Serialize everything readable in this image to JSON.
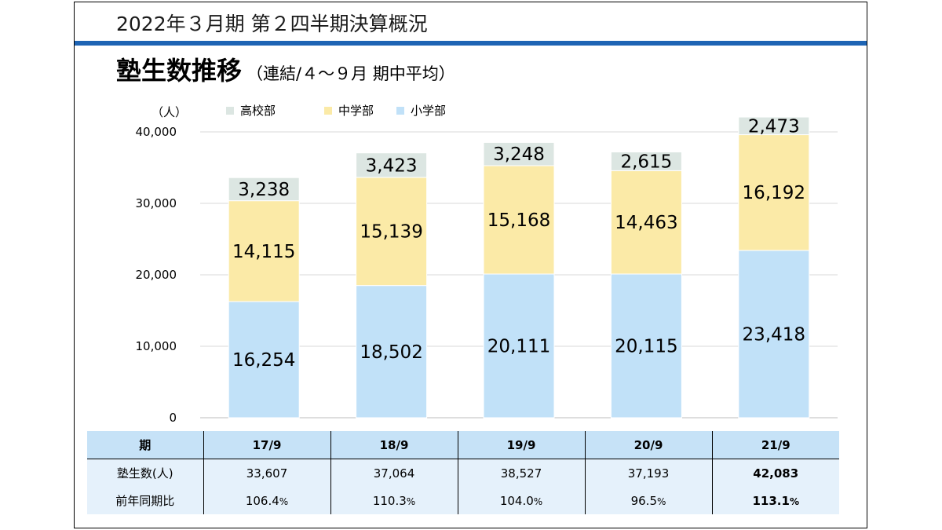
{
  "header": {
    "title": "2022年３月期 第２四半期決算概況"
  },
  "main": {
    "title": "塾生数推移",
    "subtitle": "（連結/４～９月 期中平均）"
  },
  "colors": {
    "accent_rule": "#1e64b4",
    "elementary": "#c1e1f8",
    "junior_high": "#fbeaa7",
    "high_school": "#dce6e2"
  },
  "chart_data": {
    "type": "bar",
    "stacked": true,
    "y_unit_label": "（人）",
    "ylim": [
      0,
      40000
    ],
    "yticks": [
      "0",
      "10,000",
      "20,000",
      "30,000",
      "40,000"
    ],
    "grid": true,
    "legend_position": "top",
    "categories": [
      "17/9",
      "18/9",
      "19/9",
      "20/9",
      "21/9"
    ],
    "series": [
      {
        "name": "小学部",
        "color": "#c1e1f8",
        "values": [
          16254,
          18502,
          20111,
          20115,
          23418
        ],
        "labels": [
          "16,254",
          "18,502",
          "20,111",
          "20,115",
          "23,418"
        ]
      },
      {
        "name": "中学部",
        "color": "#fbeaa7",
        "values": [
          14115,
          15139,
          15168,
          14463,
          16192
        ],
        "labels": [
          "14,115",
          "15,139",
          "15,168",
          "14,463",
          "16,192"
        ]
      },
      {
        "name": "高校部",
        "color": "#dce6e2",
        "values": [
          3238,
          3423,
          3248,
          2615,
          2473
        ],
        "labels": [
          "3,238",
          "3,423",
          "3,248",
          "2,615",
          "2,473"
        ]
      }
    ],
    "legend_order": [
      "高校部",
      "中学部",
      "小学部"
    ]
  },
  "table": {
    "header_label": "期",
    "columns": [
      "17/9",
      "18/9",
      "19/9",
      "20/9",
      "21/9"
    ],
    "rows": [
      {
        "label": "塾生数(人)",
        "values": [
          "33,607",
          "37,064",
          "38,527",
          "37,193",
          "42,083"
        ]
      },
      {
        "label": "前年同期比",
        "values": [
          "106.4",
          "110.3",
          "104.0",
          "96.5",
          "113.1"
        ],
        "unit": "%"
      }
    ]
  }
}
